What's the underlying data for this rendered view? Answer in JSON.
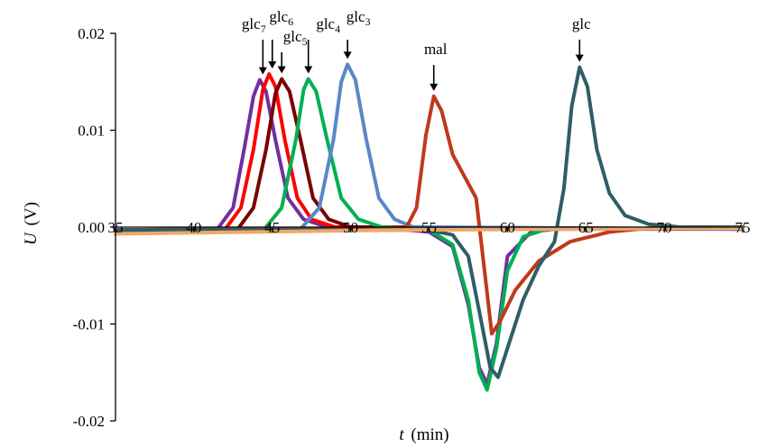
{
  "chart_data": {
    "type": "line",
    "xlabel_italic": "t",
    "xlabel_unit": "(min)",
    "ylabel_italic": "U",
    "ylabel_unit": "(V)",
    "xlim": [
      35,
      75
    ],
    "ylim": [
      -0.02,
      0.02
    ],
    "x_ticks": [
      35,
      40,
      45,
      50,
      55,
      60,
      65,
      70,
      75
    ],
    "y_ticks": [
      -0.02,
      -0.01,
      0.0,
      0.01,
      0.02
    ],
    "y_tick_labels": [
      "-0.02",
      "-0.01",
      "0.00",
      "0.01",
      "0.02"
    ],
    "grid": false,
    "legend": "none",
    "series": [
      {
        "color": "#7030a0",
        "x": [
          35,
          41.5,
          42.5,
          43.2,
          43.8,
          44.2,
          44.6,
          45.2,
          46.0,
          47.0,
          48.5,
          53.0,
          55.0,
          56.5,
          57.5,
          58.2,
          58.7,
          59.3,
          60.0,
          61.5,
          63.0,
          75
        ],
        "y": [
          -0.0004,
          -0.0002,
          0.002,
          0.008,
          0.0135,
          0.0152,
          0.014,
          0.009,
          0.003,
          0.0008,
          0.0,
          -0.0002,
          -0.0005,
          -0.002,
          -0.008,
          -0.0145,
          -0.0162,
          -0.012,
          -0.003,
          -0.0005,
          -0.0002,
          -0.0002
        ]
      },
      {
        "color": "#ff0000",
        "x": [
          35,
          42.0,
          43.0,
          43.8,
          44.4,
          44.8,
          45.2,
          45.8,
          46.6,
          47.5,
          49.0,
          75
        ],
        "y": [
          -0.0003,
          -0.0002,
          0.002,
          0.008,
          0.0142,
          0.0158,
          0.0145,
          0.009,
          0.003,
          0.0008,
          0.0,
          -0.0002
        ]
      },
      {
        "color": "#7b0000",
        "x": [
          35,
          42.8,
          43.8,
          44.6,
          45.2,
          45.6,
          46.1,
          46.8,
          47.6,
          48.6,
          50.0,
          75
        ],
        "y": [
          -0.0003,
          -0.0002,
          0.002,
          0.008,
          0.0138,
          0.0153,
          0.014,
          0.009,
          0.003,
          0.0008,
          0.0,
          -0.0002
        ]
      },
      {
        "color": "#00b050",
        "x": [
          35,
          44.5,
          45.6,
          46.5,
          47.0,
          47.3,
          47.8,
          48.5,
          49.4,
          50.5,
          52.0,
          55.0,
          56.5,
          57.5,
          58.2,
          58.7,
          59.3,
          60.0,
          61.0,
          62.5,
          75
        ],
        "y": [
          -0.0003,
          -0.0002,
          0.002,
          0.009,
          0.0142,
          0.0153,
          0.014,
          0.009,
          0.003,
          0.0008,
          0.0,
          -0.0003,
          -0.0018,
          -0.0075,
          -0.015,
          -0.0168,
          -0.0125,
          -0.0045,
          -0.001,
          -0.0002,
          -0.0001
        ]
      },
      {
        "color": "#5b87c5",
        "x": [
          35,
          46.8,
          48.0,
          48.9,
          49.4,
          49.8,
          50.3,
          51.0,
          51.8,
          52.8,
          54.0,
          75
        ],
        "y": [
          -0.0003,
          -0.0002,
          0.002,
          0.009,
          0.015,
          0.0168,
          0.0152,
          0.009,
          0.003,
          0.0008,
          0.0,
          -0.0002
        ]
      },
      {
        "color": "#c0391b",
        "x": [
          35,
          53.5,
          54.2,
          54.8,
          55.3,
          55.8,
          56.5,
          57.5,
          58.0,
          58.5,
          59.0,
          59.5,
          60.5,
          62.0,
          64.0,
          66.5,
          69.0,
          75
        ],
        "y": [
          -0.0003,
          -0.0002,
          0.002,
          0.0095,
          0.0135,
          0.012,
          0.0075,
          0.0045,
          0.003,
          -0.004,
          -0.011,
          -0.0098,
          -0.0065,
          -0.0035,
          -0.0015,
          -0.0005,
          -0.0001,
          0.0
        ]
      },
      {
        "color": "#2e5e66",
        "x": [
          35,
          55.0,
          56.5,
          57.5,
          58.3,
          58.9,
          59.4,
          60.0,
          61.0,
          62.0,
          63.0,
          63.6,
          64.1,
          64.6,
          65.1,
          65.7,
          66.5,
          67.5,
          69.0,
          71.0,
          75
        ],
        "y": [
          -0.0003,
          -0.0003,
          -0.0008,
          -0.003,
          -0.0095,
          -0.0145,
          -0.0155,
          -0.0125,
          -0.0075,
          -0.004,
          -0.0015,
          0.004,
          0.0125,
          0.0165,
          0.0145,
          0.008,
          0.0035,
          0.0012,
          0.0003,
          0.0,
          0.0
        ]
      },
      {
        "color": "#f0a868",
        "x": [
          35,
          53,
          75
        ],
        "y": [
          -0.0007,
          -0.0003,
          -0.0001
        ]
      }
    ],
    "annotations": [
      {
        "base": "glc",
        "sub": "7",
        "x": 44.4,
        "peak": 0.0152
      },
      {
        "base": "glc",
        "sub": "6",
        "x": 45.0,
        "peak": 0.0158
      },
      {
        "base": "glc",
        "sub": "5",
        "x": 45.6,
        "peak": 0.0153
      },
      {
        "base": "glc",
        "sub": "4",
        "x": 47.3,
        "peak": 0.0153
      },
      {
        "base": "glc",
        "sub": "3",
        "x": 49.8,
        "peak": 0.0168
      },
      {
        "base": "mal",
        "sub": "",
        "x": 55.3,
        "peak": 0.0135
      },
      {
        "base": "glc",
        "sub": "",
        "x": 64.6,
        "peak": 0.0165
      }
    ]
  }
}
